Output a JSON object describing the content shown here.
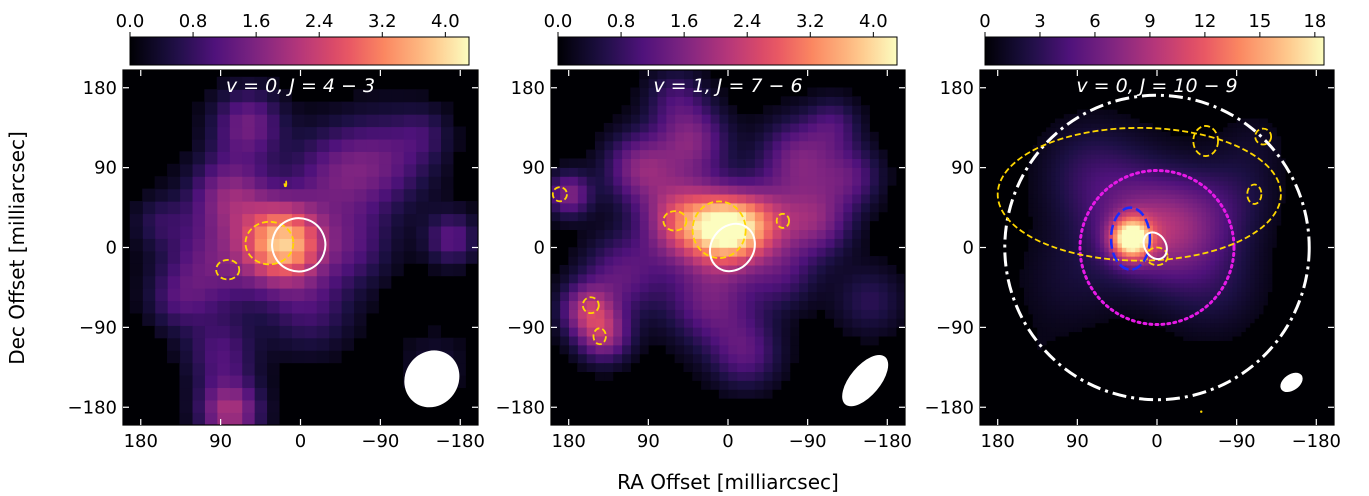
{
  "figure": {
    "xlabel": "RA Offset [milliarcsec]",
    "ylabel": "Dec Offset [milliarcsec]"
  },
  "chart_data": [
    {
      "type": "heatmap",
      "title": "v = 0, J = 4 − 3",
      "xlim": [
        200,
        -200
      ],
      "ylim": [
        -200,
        200
      ],
      "xticks": [
        180,
        90,
        0,
        -90,
        -180
      ],
      "yticks": [
        180,
        90,
        0,
        -90,
        -180
      ],
      "xtick_labels": [
        "180",
        "90",
        "0",
        "−90",
        "−180"
      ],
      "ytick_labels": [
        "180",
        "90",
        "0",
        "−90",
        "−180"
      ],
      "colormap": "magma",
      "colorbar": {
        "range": [
          0,
          4.3
        ],
        "ticks": [
          0.0,
          0.8,
          1.6,
          2.4,
          3.2,
          4.0
        ],
        "tick_labels": [
          "0.0",
          "0.8",
          "1.6",
          "2.4",
          "3.2",
          "4.0"
        ]
      },
      "pixel_size": 14,
      "blobs": [
        [
          20,
          5,
          45,
          3.6
        ],
        [
          80,
          60,
          45,
          1.6
        ],
        [
          100,
          -20,
          55,
          1.3
        ],
        [
          -40,
          80,
          55,
          1.2
        ],
        [
          60,
          140,
          40,
          1.4
        ],
        [
          -100,
          100,
          55,
          1.0
        ],
        [
          -60,
          0,
          45,
          0.9
        ],
        [
          90,
          -120,
          40,
          1.0
        ],
        [
          80,
          -185,
          35,
          2.0
        ],
        [
          -170,
          10,
          30,
          1.2
        ],
        [
          160,
          30,
          30,
          0.6
        ],
        [
          -10,
          -70,
          50,
          0.9
        ],
        [
          140,
          -60,
          35,
          0.7
        ],
        [
          -150,
          -130,
          40,
          0.4
        ],
        [
          -140,
          130,
          30,
          0.5
        ]
      ],
      "yellow_contours": [
        {
          "cx": 35,
          "cy": 5,
          "rx": 27,
          "ry": 24,
          "rot": 0
        },
        {
          "cx": 82,
          "cy": -25,
          "rx": 13,
          "ry": 11,
          "rot": 0
        },
        {
          "cx": 17,
          "cy": 72,
          "rx": 1,
          "ry": 3,
          "rot": 0
        }
      ],
      "white_ellipses": [
        {
          "cx": 2,
          "cy": 3,
          "rx": 30,
          "ry": 30,
          "rot": 25,
          "fill": false
        }
      ],
      "beam": {
        "cx": -148,
        "cy": -148,
        "rx": 30,
        "ry": 33,
        "rot": -35
      }
    },
    {
      "type": "heatmap",
      "title": "v = 1, J = 7 − 6",
      "xlim": [
        200,
        -200
      ],
      "ylim": [
        -200,
        200
      ],
      "xticks": [
        180,
        90,
        0,
        -90,
        -180
      ],
      "yticks": [
        180,
        90,
        0,
        -90,
        -180
      ],
      "xtick_labels": [
        "180",
        "90",
        "0",
        "−90",
        "−180"
      ],
      "ytick_labels": [
        "180",
        "90",
        "0",
        "−90",
        "−180"
      ],
      "colormap": "magma",
      "colorbar": {
        "range": [
          0,
          4.3
        ],
        "ticks": [
          0.0,
          0.8,
          1.6,
          2.4,
          3.2,
          4.0
        ],
        "tick_labels": [
          "0.0",
          "0.8",
          "1.6",
          "2.4",
          "3.2",
          "4.0"
        ]
      },
      "pixel_size": 10,
      "blobs": [
        [
          0,
          20,
          40,
          3.6
        ],
        [
          50,
          30,
          45,
          2.6
        ],
        [
          -40,
          30,
          40,
          1.6
        ],
        [
          100,
          90,
          40,
          1.6
        ],
        [
          40,
          120,
          40,
          1.5
        ],
        [
          -80,
          100,
          45,
          1.5
        ],
        [
          -100,
          30,
          40,
          1.5
        ],
        [
          160,
          -70,
          30,
          1.8
        ],
        [
          140,
          -100,
          30,
          1.7
        ],
        [
          180,
          60,
          25,
          1.6
        ],
        [
          20,
          -60,
          50,
          1.4
        ],
        [
          -20,
          -120,
          40,
          1.1
        ],
        [
          120,
          -30,
          45,
          1.2
        ],
        [
          -140,
          80,
          35,
          1.0
        ],
        [
          -160,
          -60,
          40,
          0.7
        ],
        [
          60,
          170,
          35,
          0.8
        ],
        [
          -60,
          -30,
          40,
          0.9
        ],
        [
          -120,
          140,
          30,
          0.8
        ]
      ],
      "yellow_contours": [
        {
          "cx": 10,
          "cy": 20,
          "rx": 30,
          "ry": 32,
          "rot": 0
        },
        {
          "cx": 60,
          "cy": 30,
          "rx": 13,
          "ry": 11,
          "rot": 0
        },
        {
          "cx": 155,
          "cy": -65,
          "rx": 9,
          "ry": 9,
          "rot": 0
        },
        {
          "cx": 145,
          "cy": -100,
          "rx": 7,
          "ry": 9,
          "rot": 0
        },
        {
          "cx": -62,
          "cy": 30,
          "rx": 7,
          "ry": 8,
          "rot": 0
        },
        {
          "cx": 190,
          "cy": 60,
          "rx": 8,
          "ry": 8,
          "rot": 0
        }
      ],
      "white_ellipses": [
        {
          "cx": -5,
          "cy": 0,
          "rx": 24,
          "ry": 28,
          "rot": -35,
          "fill": false
        }
      ],
      "beam": {
        "cx": -155,
        "cy": -150,
        "rx": 17,
        "ry": 35,
        "rot": -40
      }
    },
    {
      "type": "heatmap",
      "title": "v = 0, J = 10 − 9",
      "xlim": [
        200,
        -200
      ],
      "ylim": [
        -200,
        200
      ],
      "xticks": [
        180,
        90,
        0,
        -90,
        -180
      ],
      "yticks": [
        180,
        90,
        0,
        -90,
        -180
      ],
      "xtick_labels": [
        "180",
        "90",
        "0",
        "−90",
        "−180"
      ],
      "ytick_labels": [
        "180",
        "90",
        "0",
        "−90",
        "−180"
      ],
      "colormap": "magma",
      "colorbar": {
        "range": [
          0,
          18.5
        ],
        "ticks": [
          0,
          3,
          6,
          9,
          12,
          15,
          18
        ],
        "tick_labels": [
          "0",
          "3",
          "6",
          "9",
          "12",
          "15",
          "18"
        ]
      },
      "pixel_size": 5,
      "blobs": [
        [
          30,
          10,
          22,
          16
        ],
        [
          5,
          15,
          55,
          5
        ],
        [
          -40,
          30,
          55,
          3.5
        ],
        [
          40,
          50,
          70,
          3.0
        ],
        [
          -60,
          -40,
          60,
          2.5
        ],
        [
          80,
          90,
          55,
          2.0
        ],
        [
          -90,
          60,
          50,
          1.8
        ],
        [
          100,
          -40,
          60,
          1.5
        ],
        [
          -110,
          120,
          40,
          1.0
        ],
        [
          140,
          -130,
          40,
          0.6
        ],
        [
          -160,
          -160,
          25,
          0.5
        ]
      ],
      "yellow_contours": [
        {
          "cx": 20,
          "cy": 60,
          "rx": 160,
          "ry": 75,
          "rot": 0
        },
        {
          "cx": -55,
          "cy": 120,
          "rx": 14,
          "ry": 17,
          "rot": 0
        },
        {
          "cx": -120,
          "cy": 125,
          "rx": 9,
          "ry": 9,
          "rot": 0
        },
        {
          "cx": -110,
          "cy": 60,
          "rx": 8,
          "ry": 11,
          "rot": 0
        },
        {
          "cx": 0,
          "cy": -10,
          "rx": 12,
          "ry": 10,
          "rot": 0
        }
      ],
      "yellow_points": [
        [
          -50,
          -185
        ]
      ],
      "white_ellipses": [
        {
          "cx": 2,
          "cy": 2,
          "rx": 12,
          "ry": 16,
          "rot": 30,
          "fill": false
        },
        {
          "cx": -152,
          "cy": -152,
          "rx": 9,
          "ry": 14,
          "rot": -55,
          "fill": true
        }
      ],
      "blue_ellipse": {
        "cx": 30,
        "cy": 10,
        "rx": 22,
        "ry": 35,
        "rot": 0
      },
      "magenta_circle": {
        "cx": 0,
        "cy": 0,
        "r": 87
      },
      "dashdot_circle": {
        "cx": 0,
        "cy": 0,
        "r": 172
      }
    }
  ]
}
